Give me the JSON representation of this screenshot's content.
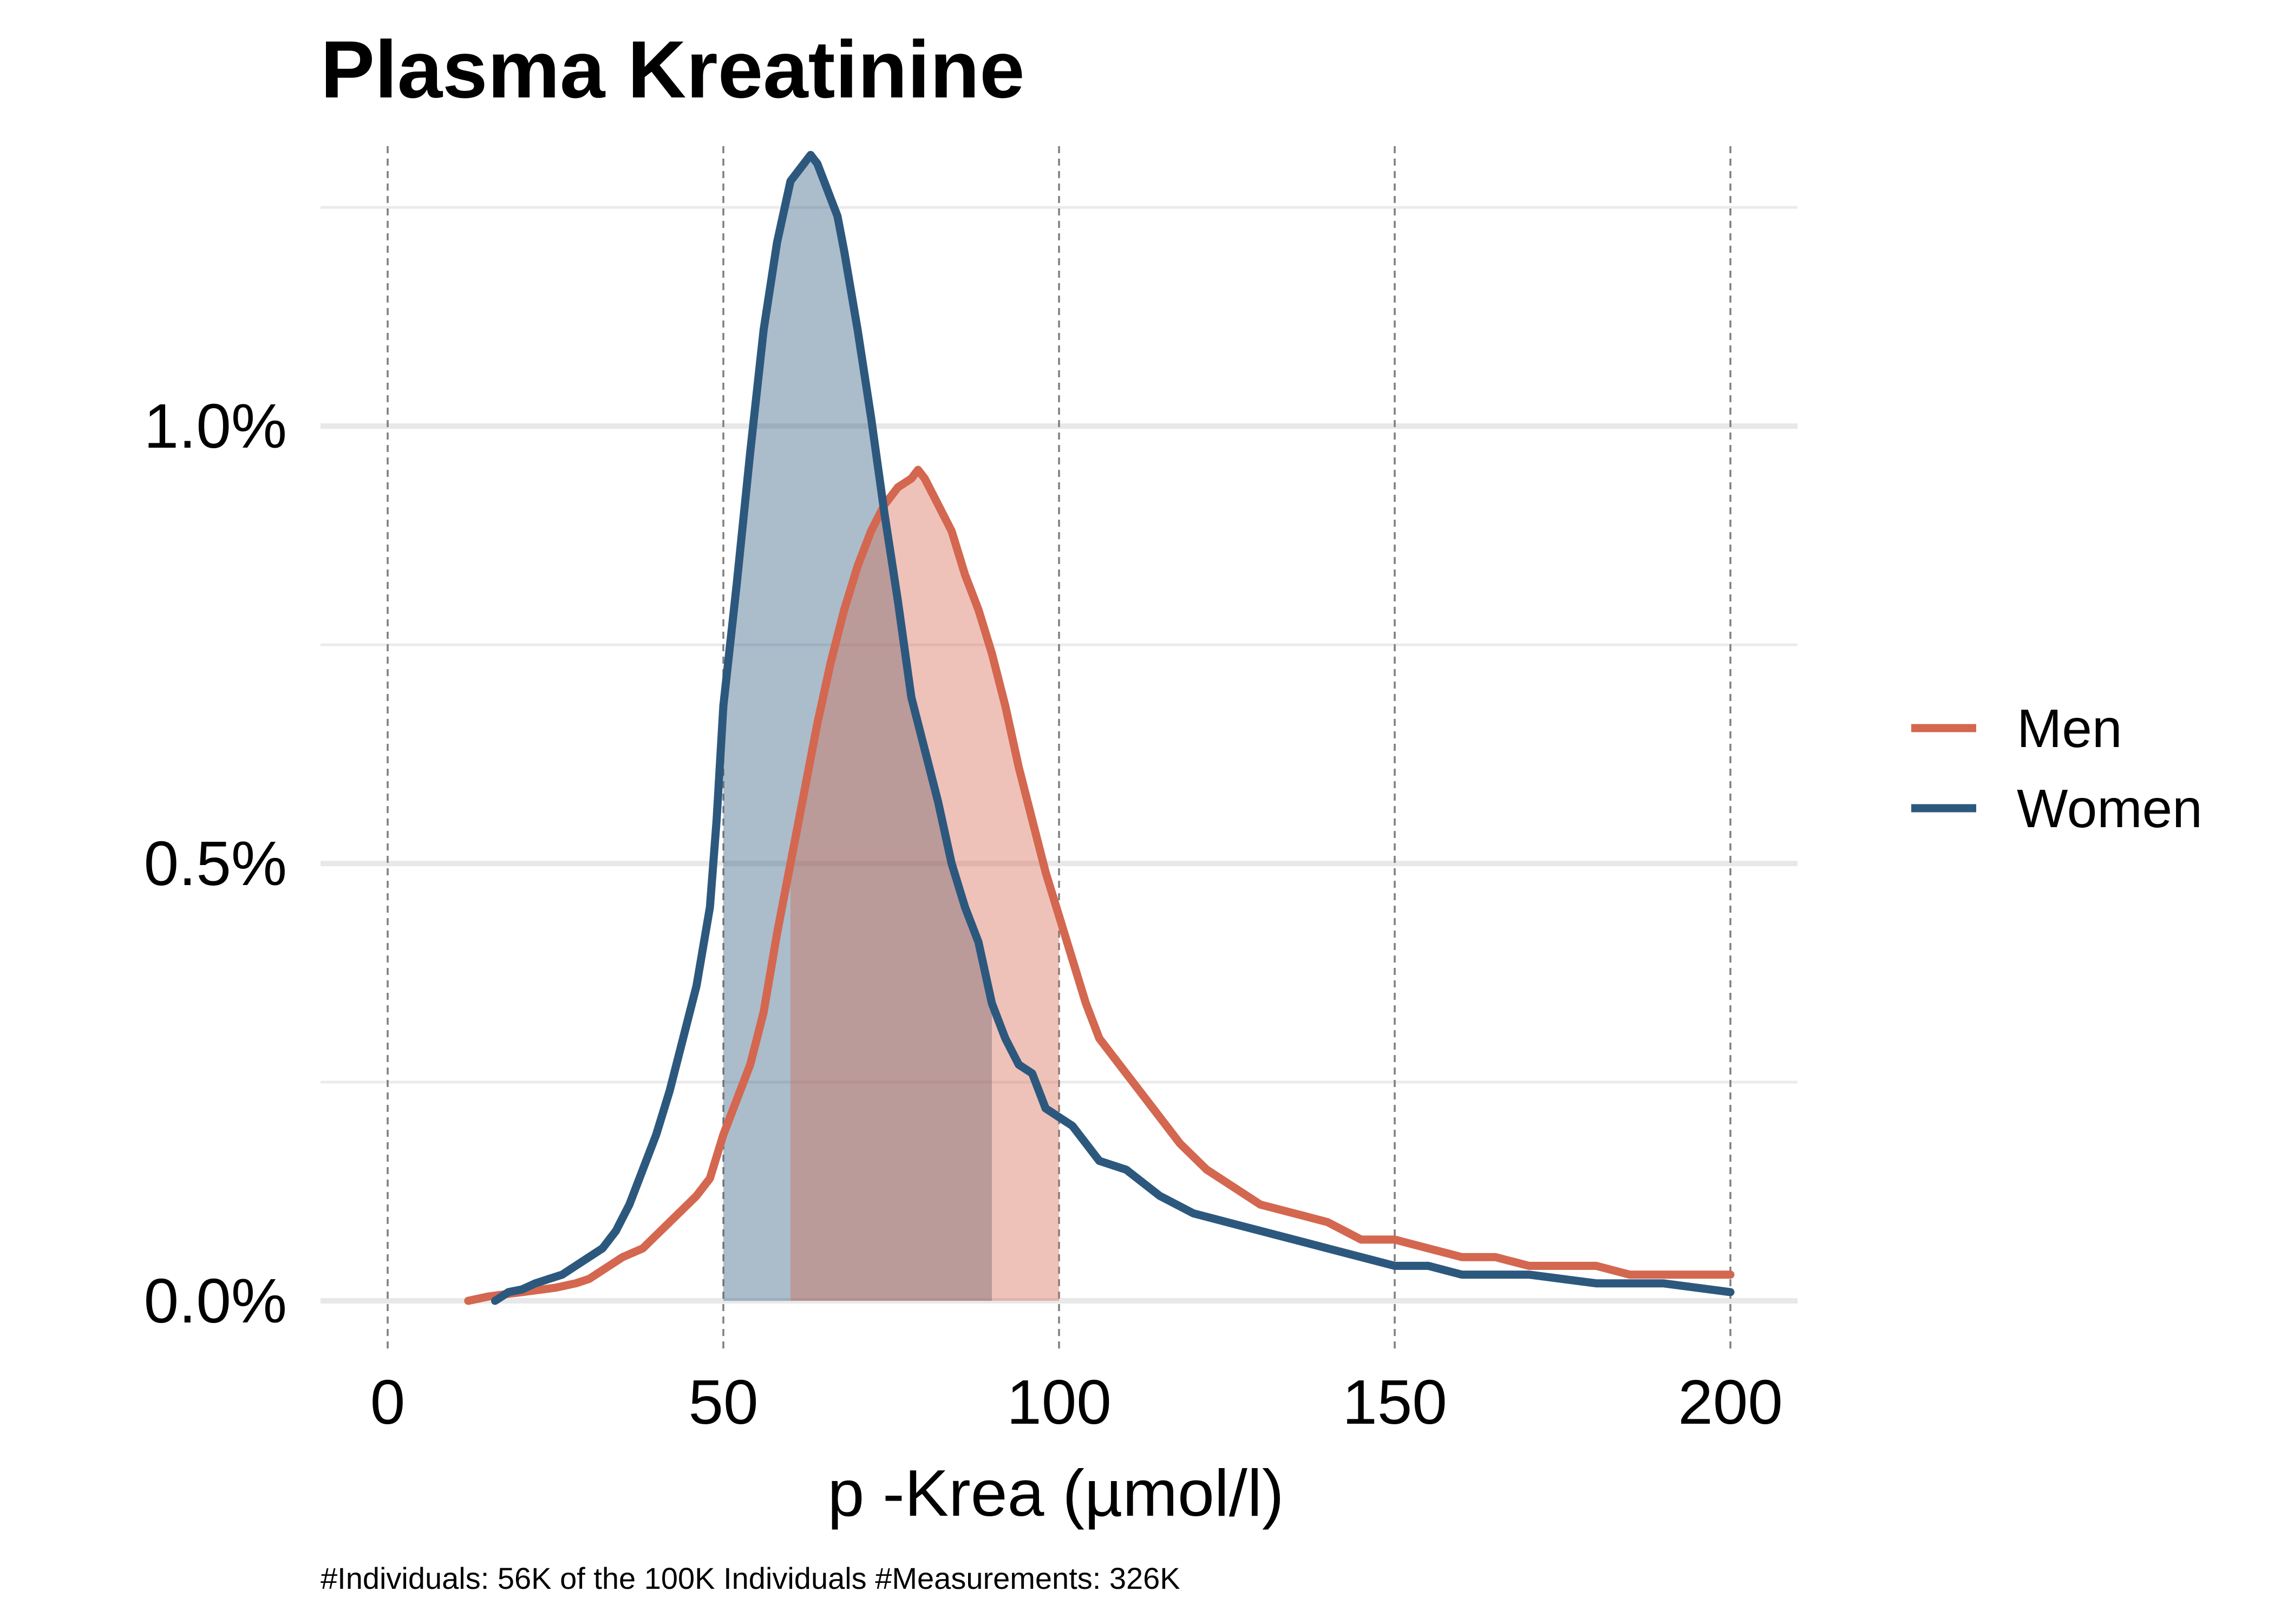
{
  "chart_data": {
    "type": "line",
    "title": "Plasma Kreatinine",
    "xlabel": "p -Krea (µmol/l)",
    "ylabel": "",
    "caption": "#Individuals: 56K of the 100K Individuals #Measurements: 326K",
    "xlim": [
      -10,
      210
    ],
    "ylim": [
      -0.0006,
      0.0132
    ],
    "x_ticks": [
      0,
      50,
      100,
      150,
      200
    ],
    "x_tick_labels": [
      "0",
      "50",
      "100",
      "150",
      "200"
    ],
    "y_ticks": [
      0,
      0.005,
      0.01
    ],
    "y_tick_labels": [
      "0.0%",
      "0.5%",
      "1.0%"
    ],
    "y_minor_gridlines": [
      0.0025,
      0.0075,
      0.0125
    ],
    "vertical_reference_lines": [
      0,
      50,
      100,
      150,
      200
    ],
    "grid": true,
    "legend_position": "right",
    "series": [
      {
        "name": "Men",
        "color": "#d4674f",
        "shaded_range": [
          60,
          100
        ],
        "x": [
          12,
          15,
          18,
          20,
          22,
          25,
          28,
          30,
          33,
          35,
          38,
          40,
          42,
          44,
          46,
          48,
          50,
          52,
          54,
          56,
          58,
          60,
          62,
          64,
          66,
          68,
          70,
          72,
          74,
          76,
          78,
          79,
          80,
          82,
          84,
          86,
          88,
          90,
          92,
          94,
          96,
          98,
          100,
          102,
          104,
          106,
          108,
          110,
          114,
          118,
          122,
          126,
          130,
          135,
          140,
          145,
          150,
          155,
          160,
          165,
          170,
          175,
          180,
          185,
          190,
          195,
          200
        ],
        "y": [
          0.0,
          5e-05,
          8e-05,
          0.0001,
          0.00012,
          0.00015,
          0.0002,
          0.00025,
          0.0004,
          0.0005,
          0.0006,
          0.00075,
          0.0009,
          0.00105,
          0.0012,
          0.0014,
          0.0019,
          0.0023,
          0.0027,
          0.0033,
          0.0042,
          0.005,
          0.0058,
          0.0066,
          0.0073,
          0.0079,
          0.0084,
          0.0088,
          0.0091,
          0.0093,
          0.0094,
          0.0095,
          0.0094,
          0.0091,
          0.0088,
          0.0083,
          0.0079,
          0.0074,
          0.0068,
          0.0061,
          0.0055,
          0.0049,
          0.0044,
          0.0039,
          0.0034,
          0.003,
          0.0028,
          0.0026,
          0.0022,
          0.0018,
          0.0015,
          0.0013,
          0.0011,
          0.001,
          0.0009,
          0.0007,
          0.0007,
          0.0006,
          0.0005,
          0.0005,
          0.0004,
          0.0004,
          0.0004,
          0.0003,
          0.0003,
          0.0003,
          0.0003
        ]
      },
      {
        "name": "Women",
        "color": "#2d587e",
        "shaded_range": [
          50,
          90
        ],
        "x": [
          16,
          18,
          20,
          22,
          24,
          26,
          28,
          30,
          32,
          34,
          36,
          38,
          40,
          42,
          44,
          46,
          48,
          49,
          50,
          52,
          54,
          56,
          58,
          60,
          61,
          62,
          63,
          64,
          65,
          66,
          67,
          68,
          70,
          72,
          74,
          76,
          78,
          80,
          82,
          84,
          86,
          88,
          90,
          92,
          94,
          96,
          98,
          100,
          102,
          104,
          106,
          110,
          115,
          120,
          125,
          130,
          135,
          140,
          145,
          150,
          155,
          160,
          170,
          180,
          190,
          200
        ],
        "y": [
          0.0,
          0.0001,
          0.00013,
          0.0002,
          0.00025,
          0.0003,
          0.0004,
          0.0005,
          0.0006,
          0.0008,
          0.0011,
          0.0015,
          0.0019,
          0.0024,
          0.003,
          0.0036,
          0.0045,
          0.0055,
          0.0068,
          0.0082,
          0.0097,
          0.0111,
          0.0121,
          0.0128,
          0.0129,
          0.013,
          0.0131,
          0.013,
          0.0128,
          0.0126,
          0.0124,
          0.012,
          0.0111,
          0.0101,
          0.009,
          0.008,
          0.0069,
          0.0063,
          0.0057,
          0.005,
          0.0045,
          0.0041,
          0.0034,
          0.003,
          0.0027,
          0.0026,
          0.0022,
          0.0021,
          0.002,
          0.0018,
          0.0016,
          0.0015,
          0.0012,
          0.001,
          0.0009,
          0.0008,
          0.0007,
          0.0006,
          0.0005,
          0.0004,
          0.0004,
          0.0003,
          0.0003,
          0.0002,
          0.0002,
          0.0001
        ]
      }
    ]
  }
}
